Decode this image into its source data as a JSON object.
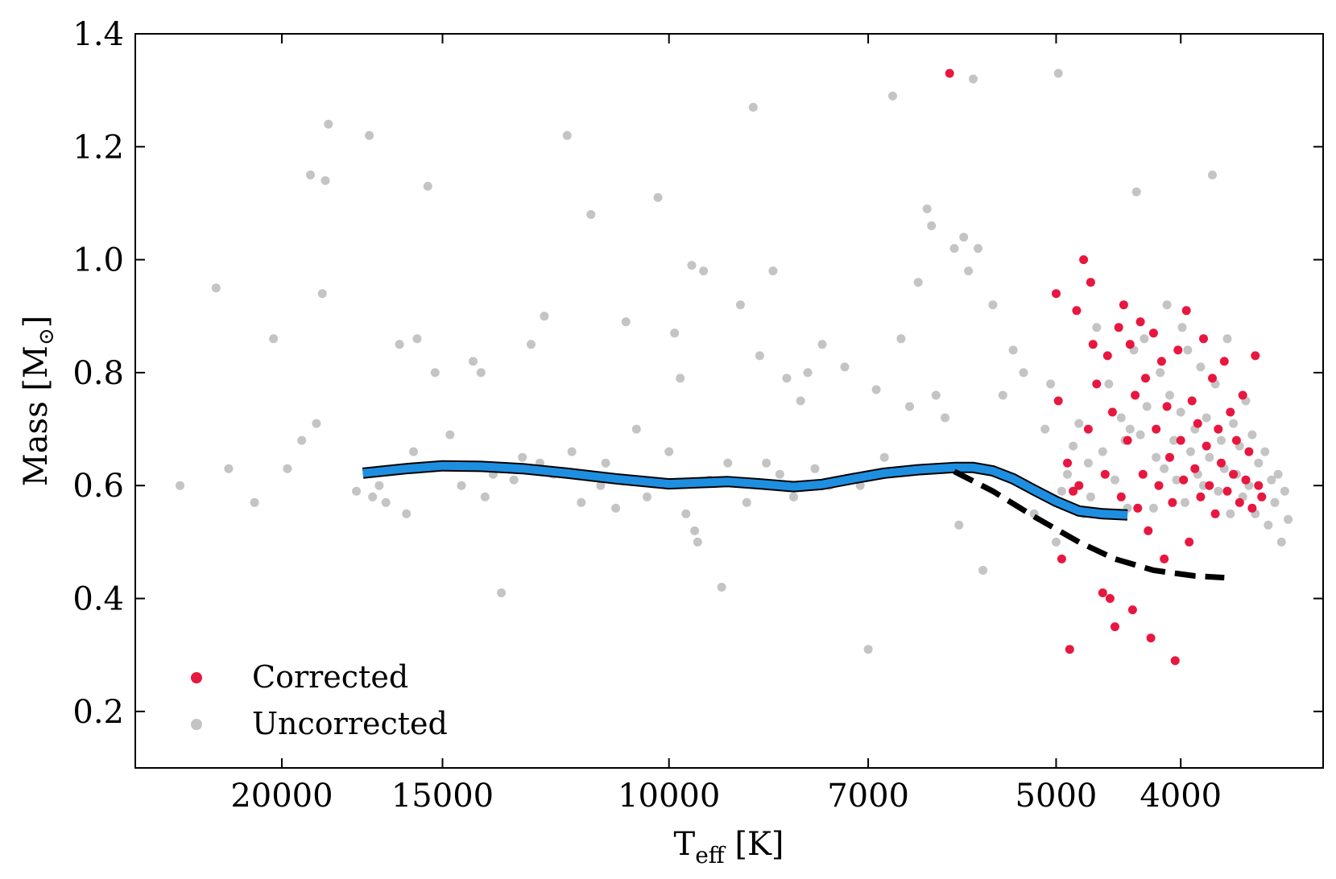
{
  "chart_data": {
    "type": "scatter",
    "xlabel": "T",
    "xlabel_sub": "eff",
    "xlabel_unit": "[K]",
    "ylabel": "Mass [M",
    "ylabel_sub": "⊙",
    "ylabel_close": "]",
    "x_scale": "log-inverted",
    "xlim": [
      26000,
      3100
    ],
    "ylim": [
      0.1,
      1.4
    ],
    "xticks": [
      20000,
      15000,
      10000,
      7000,
      5000,
      4000
    ],
    "xtick_labels": [
      "20000",
      "15000",
      "10000",
      "7000",
      "5000",
      "4000"
    ],
    "yticks": [
      0.2,
      0.4,
      0.6,
      0.8,
      1.0,
      1.2,
      1.4
    ],
    "ytick_labels": [
      "0.2",
      "0.4",
      "0.6",
      "0.8",
      "1.0",
      "1.2",
      "1.4"
    ],
    "legend_position": "bottom-left",
    "legend": [
      {
        "label": "Corrected",
        "color": "#e8173f"
      },
      {
        "label": "Uncorrected",
        "color": "#c4c4c4"
      }
    ],
    "series": [
      {
        "name": "Uncorrected",
        "color": "#c4c4c4",
        "points": [
          [
            24000,
            0.6
          ],
          [
            22500,
            0.95
          ],
          [
            22000,
            0.63
          ],
          [
            21000,
            0.57
          ],
          [
            20300,
            0.86
          ],
          [
            19800,
            0.63
          ],
          [
            19300,
            0.68
          ],
          [
            19000,
            1.15
          ],
          [
            18800,
            0.71
          ],
          [
            18600,
            0.94
          ],
          [
            18400,
            1.24
          ],
          [
            18500,
            1.14
          ],
          [
            17500,
            0.59
          ],
          [
            17100,
            1.22
          ],
          [
            17000,
            0.58
          ],
          [
            16800,
            0.6
          ],
          [
            16600,
            0.57
          ],
          [
            16200,
            0.85
          ],
          [
            16000,
            0.55
          ],
          [
            15800,
            0.66
          ],
          [
            15700,
            0.86
          ],
          [
            15400,
            1.13
          ],
          [
            15200,
            0.8
          ],
          [
            14800,
            0.69
          ],
          [
            14500,
            0.6
          ],
          [
            14200,
            0.82
          ],
          [
            14000,
            0.8
          ],
          [
            13900,
            0.58
          ],
          [
            13700,
            0.62
          ],
          [
            13500,
            0.41
          ],
          [
            13200,
            0.61
          ],
          [
            13000,
            0.65
          ],
          [
            12800,
            0.85
          ],
          [
            12600,
            0.64
          ],
          [
            12500,
            0.9
          ],
          [
            12300,
            0.62
          ],
          [
            12000,
            1.22
          ],
          [
            11900,
            0.66
          ],
          [
            11700,
            0.57
          ],
          [
            11500,
            1.08
          ],
          [
            11300,
            0.6
          ],
          [
            11200,
            0.64
          ],
          [
            11000,
            0.56
          ],
          [
            10800,
            0.89
          ],
          [
            10600,
            0.7
          ],
          [
            10400,
            0.58
          ],
          [
            10200,
            1.11
          ],
          [
            10000,
            0.66
          ],
          [
            9900,
            0.87
          ],
          [
            9800,
            0.79
          ],
          [
            9700,
            0.55
          ],
          [
            9600,
            0.99
          ],
          [
            9550,
            0.52
          ],
          [
            9500,
            0.5
          ],
          [
            9400,
            0.98
          ],
          [
            9300,
            0.61
          ],
          [
            9100,
            0.42
          ],
          [
            9000,
            0.64
          ],
          [
            8800,
            0.92
          ],
          [
            8700,
            0.57
          ],
          [
            8600,
            1.27
          ],
          [
            8500,
            0.83
          ],
          [
            8400,
            0.64
          ],
          [
            8300,
            0.98
          ],
          [
            8200,
            0.62
          ],
          [
            8100,
            0.79
          ],
          [
            8000,
            0.58
          ],
          [
            7900,
            0.75
          ],
          [
            7800,
            0.8
          ],
          [
            7700,
            0.63
          ],
          [
            7600,
            0.85
          ],
          [
            7500,
            0.6
          ],
          [
            7300,
            0.81
          ],
          [
            7100,
            0.6
          ],
          [
            7000,
            0.31
          ],
          [
            6900,
            0.77
          ],
          [
            6800,
            0.65
          ],
          [
            6700,
            1.29
          ],
          [
            6600,
            0.86
          ],
          [
            6500,
            0.74
          ],
          [
            6400,
            0.96
          ],
          [
            6300,
            1.09
          ],
          [
            6250,
            1.06
          ],
          [
            6200,
            0.76
          ],
          [
            6100,
            0.72
          ],
          [
            6000,
            1.02
          ],
          [
            5950,
            0.53
          ],
          [
            5900,
            1.04
          ],
          [
            5850,
            0.98
          ],
          [
            5800,
            1.32
          ],
          [
            5750,
            1.02
          ],
          [
            5700,
            0.45
          ],
          [
            5600,
            0.92
          ],
          [
            5500,
            0.76
          ],
          [
            5400,
            0.84
          ],
          [
            5300,
            0.8
          ],
          [
            5200,
            0.55
          ],
          [
            5100,
            0.7
          ],
          [
            5050,
            0.78
          ],
          [
            5000,
            0.5
          ],
          [
            4980,
            1.33
          ],
          [
            4950,
            0.59
          ],
          [
            4900,
            0.62
          ],
          [
            4850,
            0.67
          ],
          [
            4800,
            0.71
          ],
          [
            4760,
            0.55
          ],
          [
            4720,
            0.64
          ],
          [
            4700,
            0.58
          ],
          [
            4650,
            0.88
          ],
          [
            4600,
            0.66
          ],
          [
            4550,
            0.78
          ],
          [
            4500,
            0.61
          ],
          [
            4450,
            0.72
          ],
          [
            4420,
            0.68
          ],
          [
            4400,
            0.56
          ],
          [
            4380,
            0.7
          ],
          [
            4350,
            0.84
          ],
          [
            4330,
            1.12
          ],
          [
            4300,
            0.69
          ],
          [
            4270,
            0.86
          ],
          [
            4250,
            0.74
          ],
          [
            4200,
            0.56
          ],
          [
            4180,
            0.65
          ],
          [
            4150,
            0.8
          ],
          [
            4120,
            0.63
          ],
          [
            4100,
            0.92
          ],
          [
            4080,
            0.76
          ],
          [
            4050,
            0.68
          ],
          [
            4030,
            0.61
          ],
          [
            4000,
            0.73
          ],
          [
            3990,
            0.88
          ],
          [
            3970,
            0.57
          ],
          [
            3950,
            0.84
          ],
          [
            3930,
            0.66
          ],
          [
            3900,
            0.7
          ],
          [
            3880,
            0.62
          ],
          [
            3860,
            0.81
          ],
          [
            3840,
            0.6
          ],
          [
            3820,
            0.72
          ],
          [
            3800,
            0.65
          ],
          [
            3780,
            1.15
          ],
          [
            3760,
            0.78
          ],
          [
            3740,
            0.59
          ],
          [
            3720,
            0.68
          ],
          [
            3700,
            0.63
          ],
          [
            3680,
            0.86
          ],
          [
            3660,
            0.55
          ],
          [
            3640,
            0.71
          ],
          [
            3620,
            0.62
          ],
          [
            3600,
            0.67
          ],
          [
            3580,
            0.58
          ],
          [
            3560,
            0.75
          ],
          [
            3540,
            0.6
          ],
          [
            3520,
            0.69
          ],
          [
            3500,
            0.55
          ],
          [
            3480,
            0.64
          ],
          [
            3460,
            0.58
          ],
          [
            3440,
            0.66
          ],
          [
            3420,
            0.53
          ],
          [
            3400,
            0.61
          ],
          [
            3380,
            0.57
          ],
          [
            3360,
            0.62
          ],
          [
            3340,
            0.5
          ],
          [
            3320,
            0.59
          ],
          [
            3300,
            0.54
          ]
        ]
      },
      {
        "name": "Corrected",
        "color": "#e8173f",
        "points": [
          [
            6050,
            1.33
          ],
          [
            5000,
            0.94
          ],
          [
            4980,
            0.75
          ],
          [
            4950,
            0.47
          ],
          [
            4900,
            0.64
          ],
          [
            4880,
            0.31
          ],
          [
            4850,
            0.59
          ],
          [
            4820,
            0.91
          ],
          [
            4800,
            0.6
          ],
          [
            4760,
            1.0
          ],
          [
            4720,
            0.7
          ],
          [
            4700,
            0.96
          ],
          [
            4680,
            0.85
          ],
          [
            4650,
            0.78
          ],
          [
            4620,
            0.55
          ],
          [
            4600,
            0.41
          ],
          [
            4580,
            0.62
          ],
          [
            4560,
            0.83
          ],
          [
            4540,
            0.4
          ],
          [
            4520,
            0.73
          ],
          [
            4500,
            0.35
          ],
          [
            4470,
            0.88
          ],
          [
            4450,
            0.58
          ],
          [
            4430,
            0.92
          ],
          [
            4400,
            0.68
          ],
          [
            4380,
            0.85
          ],
          [
            4360,
            0.38
          ],
          [
            4340,
            0.76
          ],
          [
            4320,
            0.56
          ],
          [
            4300,
            0.89
          ],
          [
            4280,
            0.62
          ],
          [
            4260,
            0.79
          ],
          [
            4240,
            0.52
          ],
          [
            4220,
            0.33
          ],
          [
            4200,
            0.87
          ],
          [
            4180,
            0.7
          ],
          [
            4160,
            0.6
          ],
          [
            4140,
            0.82
          ],
          [
            4120,
            0.47
          ],
          [
            4100,
            0.74
          ],
          [
            4080,
            0.65
          ],
          [
            4060,
            0.57
          ],
          [
            4040,
            0.29
          ],
          [
            4020,
            0.84
          ],
          [
            4000,
            0.68
          ],
          [
            3980,
            0.61
          ],
          [
            3960,
            0.91
          ],
          [
            3940,
            0.5
          ],
          [
            3920,
            0.75
          ],
          [
            3900,
            0.63
          ],
          [
            3880,
            0.71
          ],
          [
            3860,
            0.58
          ],
          [
            3840,
            0.86
          ],
          [
            3820,
            0.67
          ],
          [
            3800,
            0.6
          ],
          [
            3780,
            0.79
          ],
          [
            3760,
            0.55
          ],
          [
            3740,
            0.7
          ],
          [
            3720,
            0.64
          ],
          [
            3700,
            0.82
          ],
          [
            3680,
            0.59
          ],
          [
            3660,
            0.73
          ],
          [
            3640,
            0.62
          ],
          [
            3620,
            0.68
          ],
          [
            3600,
            0.57
          ],
          [
            3580,
            0.76
          ],
          [
            3560,
            0.61
          ],
          [
            3540,
            0.66
          ],
          [
            3520,
            0.56
          ],
          [
            3500,
            0.83
          ],
          [
            3480,
            0.6
          ],
          [
            3460,
            0.58
          ]
        ]
      }
    ],
    "lines": [
      {
        "name": "corrected-mean",
        "style": "solid",
        "color": "#1e8fe0",
        "points": [
          [
            17300,
            0.622
          ],
          [
            16000,
            0.63
          ],
          [
            15000,
            0.635
          ],
          [
            14000,
            0.634
          ],
          [
            13000,
            0.63
          ],
          [
            12000,
            0.622
          ],
          [
            11000,
            0.612
          ],
          [
            10000,
            0.603
          ],
          [
            9500,
            0.605
          ],
          [
            9000,
            0.607
          ],
          [
            8500,
            0.603
          ],
          [
            8000,
            0.598
          ],
          [
            7600,
            0.602
          ],
          [
            7200,
            0.612
          ],
          [
            6800,
            0.622
          ],
          [
            6400,
            0.628
          ],
          [
            6000,
            0.632
          ],
          [
            5800,
            0.632
          ],
          [
            5600,
            0.626
          ],
          [
            5400,
            0.612
          ],
          [
            5200,
            0.592
          ],
          [
            5000,
            0.572
          ],
          [
            4800,
            0.555
          ],
          [
            4600,
            0.55
          ],
          [
            4400,
            0.548
          ]
        ]
      },
      {
        "name": "uncorrected-mean",
        "style": "dashed",
        "color": "#000000",
        "points": [
          [
            6000,
            0.625
          ],
          [
            5600,
            0.59
          ],
          [
            5200,
            0.545
          ],
          [
            4800,
            0.5
          ],
          [
            4500,
            0.47
          ],
          [
            4200,
            0.45
          ],
          [
            3900,
            0.44
          ],
          [
            3700,
            0.437
          ]
        ]
      }
    ]
  }
}
